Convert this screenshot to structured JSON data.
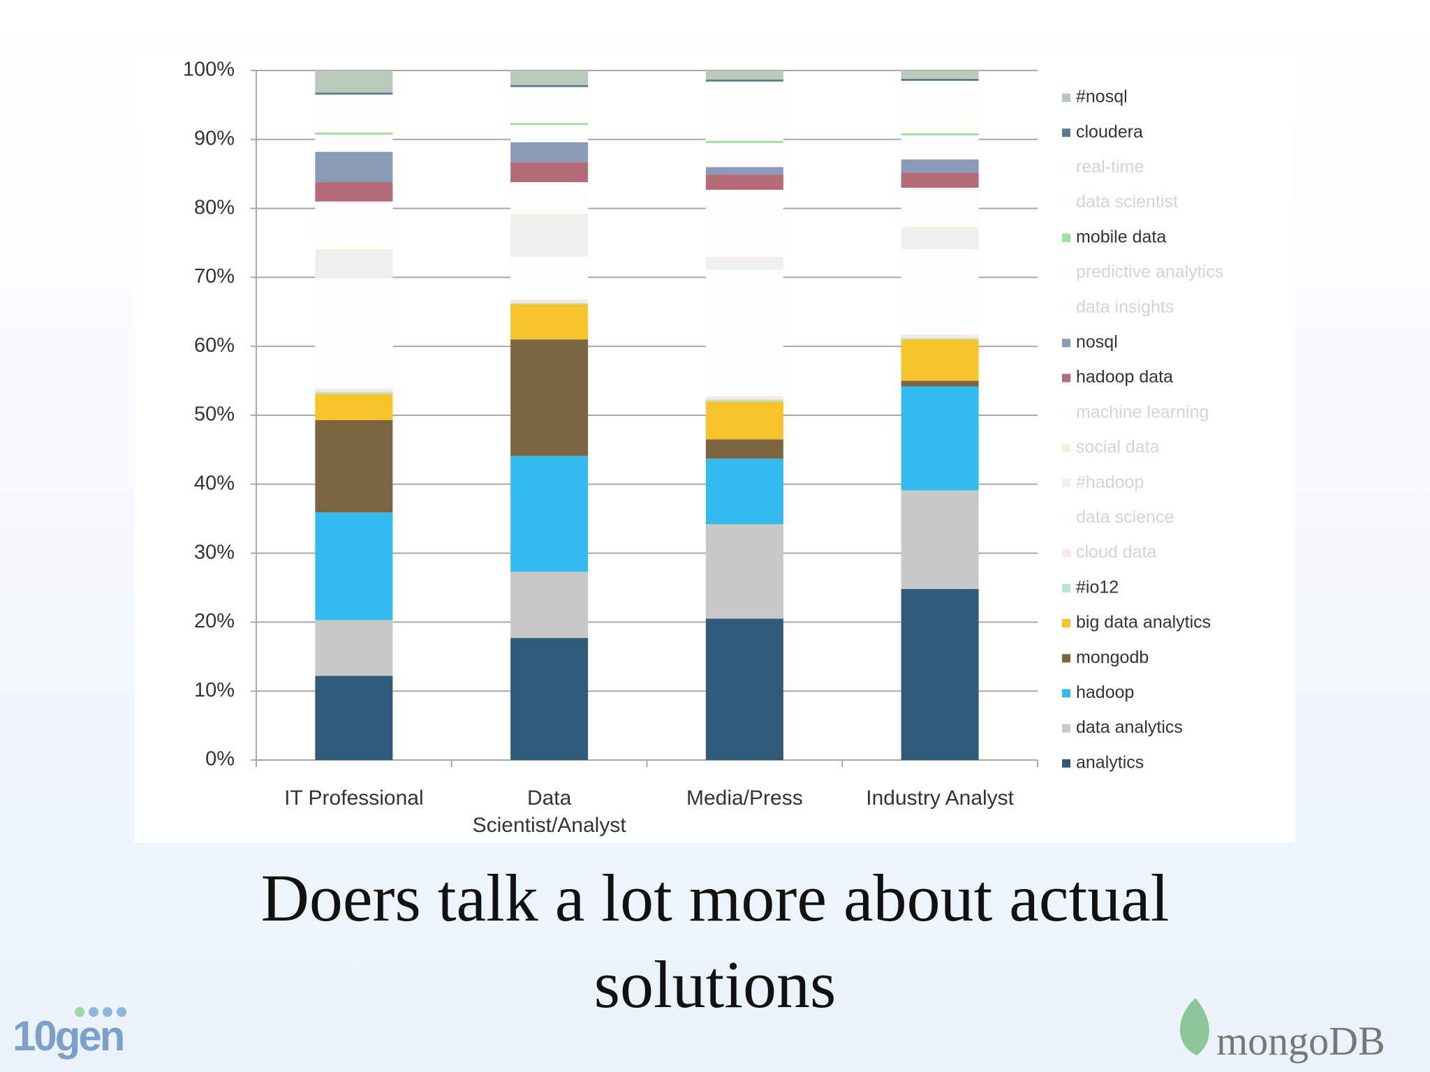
{
  "chart_data": {
    "type": "bar",
    "stacked": true,
    "categories": [
      "IT Professional",
      "Data Scientist/Analyst",
      "Media/Press",
      "Industry Analyst"
    ],
    "series": [
      {
        "name": "analytics",
        "color": "#2f5a7a",
        "values": [
          12.2,
          17.7,
          20.5,
          24.8
        ]
      },
      {
        "name": "data analytics",
        "color": "#c8c8c8",
        "values": [
          8.1,
          9.6,
          13.7,
          14.3
        ]
      },
      {
        "name": "hadoop",
        "color": "#33bbef",
        "values": [
          15.6,
          16.8,
          9.5,
          15.1
        ]
      },
      {
        "name": "mongodb",
        "color": "#7b6641",
        "values": [
          13.4,
          16.9,
          2.8,
          0.8
        ]
      },
      {
        "name": "big data analytics",
        "color": "#f7c52b",
        "values": [
          3.8,
          5.1,
          5.5,
          6.0
        ]
      },
      {
        "name": "#io12",
        "color": "#b9e5cc",
        "values": [
          0.3,
          0.2,
          0.3,
          0.2
        ]
      },
      {
        "name": "cloud data",
        "color": "#fde6e6",
        "values": [
          0.5,
          0.5,
          0.5,
          0.5
        ]
      },
      {
        "name": "data science",
        "color": "#fdfeff",
        "values": [
          16.0,
          6.2,
          18.3,
          12.4
        ]
      },
      {
        "name": "#hadoop",
        "color": "#efefef",
        "values": [
          4.0,
          6.0,
          1.7,
          3.0
        ]
      },
      {
        "name": "social data",
        "color": "#f6f0d6",
        "values": [
          0.2,
          0.2,
          0.2,
          0.2
        ]
      },
      {
        "name": "machine learning",
        "color": "#fffcfe",
        "values": [
          6.9,
          4.6,
          9.7,
          5.7
        ]
      },
      {
        "name": "hadoop data",
        "color": "#b56a78",
        "values": [
          2.8,
          2.9,
          2.2,
          2.2
        ]
      },
      {
        "name": "nosql",
        "color": "#8a9bb5",
        "values": [
          4.4,
          2.9,
          1.1,
          1.9
        ]
      },
      {
        "name": "data insights",
        "color": "#fefefe",
        "values": [
          1.0,
          1.0,
          1.5,
          1.5
        ]
      },
      {
        "name": "predictive analytics",
        "color": "#fdfdfd",
        "values": [
          1.5,
          1.5,
          2.0,
          2.0
        ]
      },
      {
        "name": "mobile data",
        "color": "#9ee09e",
        "values": [
          0.3,
          0.3,
          0.3,
          0.3
        ]
      },
      {
        "name": "data scientist",
        "color": "#fffefa",
        "values": [
          2.0,
          2.0,
          3.0,
          3.0
        ]
      },
      {
        "name": "real-time",
        "color": "#fefefe",
        "values": [
          3.5,
          3.2,
          5.6,
          4.6
        ]
      },
      {
        "name": "cloudera",
        "color": "#5d7a91",
        "values": [
          0.3,
          0.3,
          0.3,
          0.3
        ]
      },
      {
        "name": "#nosql",
        "color": "#b9c9bb",
        "values": [
          3.2,
          2.1,
          1.3,
          1.2
        ]
      }
    ],
    "ylim": [
      0,
      100
    ],
    "yticks": [
      {
        "value": 0,
        "label": "0%"
      },
      {
        "value": 10,
        "label": "10%"
      },
      {
        "value": 20,
        "label": "20%"
      },
      {
        "value": 30,
        "label": "30%"
      },
      {
        "value": 40,
        "label": "40%"
      },
      {
        "value": 50,
        "label": "50%"
      },
      {
        "value": 60,
        "label": "60%"
      },
      {
        "value": 70,
        "label": "70%"
      },
      {
        "value": 80,
        "label": "80%"
      },
      {
        "value": 90,
        "label": "90%"
      },
      {
        "value": 100,
        "label": "100%"
      }
    ],
    "grid": true,
    "legend": "right"
  },
  "slide": {
    "caption": "Doers talk a lot more about actual solutions",
    "logo_left": "10gen",
    "logo_right": "mongoDB"
  }
}
